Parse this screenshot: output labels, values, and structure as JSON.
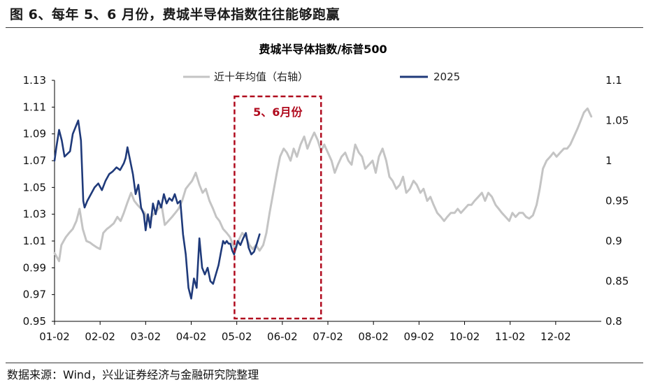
{
  "figure_title": "图 6、每年 5、6 月份，费城半导体指数往往能够跑赢",
  "source_note": "数据来源：Wind，兴业证券经济与金融研究院整理",
  "colors": {
    "series_avg": "#c4c4c4",
    "series_2025": "#1f3a7a",
    "highlight": "#b00b1e",
    "axis": "#000000"
  },
  "chart_data": {
    "type": "line",
    "title": "费城半导体指数/标普500",
    "xlabel": "",
    "ylabel": "",
    "x_ticks": [
      "01-02",
      "02-02",
      "03-02",
      "04-02",
      "05-02",
      "06-02",
      "07-02",
      "08-02",
      "09-02",
      "10-02",
      "11-02",
      "12-02"
    ],
    "x_range": [
      0,
      12
    ],
    "y_left": {
      "ticks": [
        "0.95",
        "0.97",
        "0.99",
        "1.01",
        "1.03",
        "1.05",
        "1.07",
        "1.09",
        "1.11",
        "1.13"
      ],
      "range": [
        0.95,
        1.13
      ]
    },
    "y_right": {
      "ticks": [
        "0.8",
        "0.85",
        "0.9",
        "0.95",
        "1",
        "1.05",
        "1.1"
      ],
      "range": [
        0.8,
        1.1
      ]
    },
    "legend": {
      "position": "top-center",
      "entries": [
        "近十年均值（右轴）",
        "2025"
      ]
    },
    "grid": false,
    "annotation": {
      "label": "5、6月份",
      "x_start": 3.95,
      "x_end": 5.85,
      "style": "dashed-box"
    },
    "series": [
      {
        "name": "近十年均值（右轴）",
        "axis": "right",
        "color": "#c4c4c4",
        "x": [
          0.0,
          0.05,
          0.1,
          0.15,
          0.2,
          0.25,
          0.32,
          0.4,
          0.48,
          0.55,
          0.62,
          0.7,
          0.78,
          0.85,
          0.93,
          1.0,
          1.07,
          1.15,
          1.22,
          1.3,
          1.38,
          1.45,
          1.52,
          1.6,
          1.68,
          1.75,
          1.82,
          1.9,
          1.98,
          2.05,
          2.12,
          2.2,
          2.28,
          2.35,
          2.42,
          2.5,
          2.58,
          2.65,
          2.72,
          2.8,
          2.88,
          2.95,
          3.02,
          3.1,
          3.18,
          3.25,
          3.32,
          3.4,
          3.48,
          3.55,
          3.62,
          3.7,
          3.78,
          3.85,
          3.92,
          3.98,
          4.05,
          4.12,
          4.2,
          4.28,
          4.35,
          4.42,
          4.5,
          4.58,
          4.65,
          4.72,
          4.8,
          4.88,
          4.95,
          5.03,
          5.1,
          5.18,
          5.25,
          5.32,
          5.4,
          5.48,
          5.55,
          5.62,
          5.7,
          5.78,
          5.85,
          5.92,
          6.0,
          6.08,
          6.15,
          6.22,
          6.3,
          6.38,
          6.45,
          6.52,
          6.6,
          6.68,
          6.75,
          6.82,
          6.9,
          6.98,
          7.05,
          7.12,
          7.2,
          7.28,
          7.35,
          7.42,
          7.5,
          7.58,
          7.65,
          7.72,
          7.8,
          7.88,
          7.95,
          8.03,
          8.1,
          8.18,
          8.25,
          8.32,
          8.4,
          8.48,
          8.55,
          8.62,
          8.7,
          8.78,
          8.85,
          8.92,
          9.0,
          9.08,
          9.15,
          9.22,
          9.3,
          9.38,
          9.45,
          9.52,
          9.6,
          9.68,
          9.75,
          9.82,
          9.9,
          9.98,
          10.05,
          10.12,
          10.2,
          10.28,
          10.35,
          10.42,
          10.5,
          10.58,
          10.65,
          10.72,
          10.8,
          10.88,
          10.95,
          11.02,
          11.1,
          11.18,
          11.25,
          11.32,
          11.4,
          11.48,
          11.55,
          11.62,
          11.7,
          11.78
        ],
        "values": [
          0.885,
          0.88,
          0.875,
          0.895,
          0.9,
          0.905,
          0.91,
          0.915,
          0.925,
          0.94,
          0.915,
          0.9,
          0.898,
          0.895,
          0.892,
          0.89,
          0.91,
          0.915,
          0.918,
          0.922,
          0.93,
          0.925,
          0.935,
          0.948,
          0.96,
          0.95,
          0.945,
          0.94,
          0.935,
          0.925,
          0.93,
          0.935,
          0.94,
          0.945,
          0.92,
          0.925,
          0.93,
          0.935,
          0.94,
          0.95,
          0.965,
          0.97,
          0.975,
          0.985,
          0.97,
          0.96,
          0.965,
          0.95,
          0.94,
          0.93,
          0.925,
          0.915,
          0.91,
          0.905,
          0.895,
          0.89,
          0.902,
          0.91,
          0.905,
          0.895,
          0.89,
          0.895,
          0.888,
          0.895,
          0.91,
          0.935,
          0.96,
          0.985,
          1.005,
          1.015,
          1.01,
          1.0,
          1.015,
          1.005,
          1.02,
          1.03,
          1.015,
          1.025,
          1.035,
          1.025,
          1.012,
          1.02,
          1.01,
          1.0,
          0.985,
          0.995,
          1.005,
          1.01,
          1.0,
          0.995,
          1.02,
          1.01,
          1.005,
          0.99,
          0.995,
          1.0,
          0.985,
          1.005,
          1.015,
          1.0,
          0.98,
          0.975,
          0.965,
          0.97,
          0.98,
          0.96,
          0.965,
          0.975,
          0.97,
          0.96,
          0.965,
          0.95,
          0.955,
          0.945,
          0.935,
          0.93,
          0.925,
          0.93,
          0.935,
          0.935,
          0.94,
          0.935,
          0.94,
          0.945,
          0.945,
          0.95,
          0.955,
          0.96,
          0.95,
          0.96,
          0.955,
          0.945,
          0.94,
          0.935,
          0.93,
          0.925,
          0.935,
          0.93,
          0.935,
          0.935,
          0.93,
          0.928,
          0.932,
          0.945,
          0.965,
          0.99,
          1.0,
          1.005,
          1.01,
          1.005,
          1.01,
          1.015,
          1.015,
          1.02,
          1.03,
          1.04,
          1.05,
          1.06,
          1.065,
          1.055
        ]
      },
      {
        "name": "2025",
        "axis": "left",
        "color": "#1f3a7a",
        "x": [
          0.0,
          0.04,
          0.1,
          0.16,
          0.22,
          0.28,
          0.34,
          0.4,
          0.46,
          0.52,
          0.58,
          0.63,
          0.66,
          0.72,
          0.8,
          0.88,
          0.96,
          1.04,
          1.12,
          1.2,
          1.28,
          1.36,
          1.44,
          1.52,
          1.56,
          1.6,
          1.66,
          1.72,
          1.78,
          1.84,
          1.9,
          1.96,
          2.0,
          2.05,
          2.1,
          2.16,
          2.22,
          2.28,
          2.34,
          2.4,
          2.46,
          2.52,
          2.58,
          2.64,
          2.7,
          2.76,
          2.82,
          2.88,
          2.94,
          3.0,
          3.06,
          3.12,
          3.18,
          3.24,
          3.3,
          3.36,
          3.42,
          3.48,
          3.54,
          3.6,
          3.66,
          3.7,
          3.74,
          3.78,
          3.82,
          3.86,
          3.9,
          3.94,
          3.98,
          4.02,
          4.08,
          4.14,
          4.2,
          4.26,
          4.32,
          4.38,
          4.44,
          4.5
        ],
        "values": [
          1.07,
          1.08,
          1.093,
          1.085,
          1.073,
          1.075,
          1.077,
          1.09,
          1.095,
          1.1,
          1.085,
          1.04,
          1.035,
          1.04,
          1.045,
          1.05,
          1.053,
          1.048,
          1.055,
          1.06,
          1.062,
          1.065,
          1.063,
          1.068,
          1.072,
          1.08,
          1.07,
          1.06,
          1.045,
          1.052,
          1.035,
          1.03,
          1.018,
          1.03,
          1.02,
          1.038,
          1.03,
          1.04,
          1.035,
          1.045,
          1.038,
          1.042,
          1.04,
          1.045,
          1.038,
          1.04,
          1.015,
          1.0,
          0.975,
          0.967,
          0.982,
          0.975,
          1.012,
          0.99,
          0.985,
          0.99,
          0.98,
          0.978,
          0.985,
          0.992,
          1.003,
          1.01,
          1.008,
          1.01,
          1.008,
          1.008,
          1.003,
          1.0,
          1.005,
          1.01,
          1.007,
          1.012,
          1.016,
          1.005,
          1.0,
          1.002,
          1.008,
          1.015
        ]
      }
    ]
  }
}
